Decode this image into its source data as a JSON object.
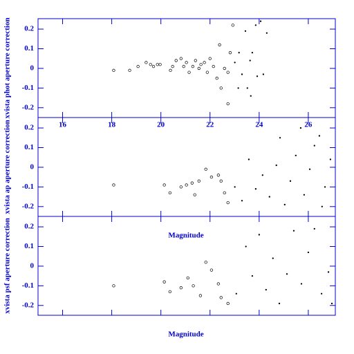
{
  "chart_data": [
    {
      "type": "scatter",
      "y_label": "xvista phot aperture correction",
      "color": "#000000",
      "axis_color": "#0000cc",
      "xlim": [
        15.0,
        27.1
      ],
      "ylim": [
        -0.25,
        0.253
      ],
      "xticks": [
        16,
        18,
        20,
        22,
        24,
        26
      ],
      "yticks": [
        -0.2,
        -0.1,
        0,
        0.1,
        0.2
      ],
      "x_tick_labels": true,
      "x": [
        18.08,
        18.73,
        19.07,
        19.4,
        19.58,
        19.7,
        19.86,
        19.97,
        20.39,
        20.48,
        20.62,
        20.82,
        20.93,
        21.04,
        21.15,
        21.3,
        21.41,
        21.55,
        21.63,
        21.77,
        21.89,
        22.0,
        22.14,
        22.28,
        22.39,
        22.45,
        22.59,
        22.73,
        22.82,
        22.93,
        23.01,
        23.18,
        23.3,
        23.44,
        23.52,
        23.63,
        23.72,
        23.86,
        23.92,
        24.06,
        24.17,
        24.31,
        22.73,
        23.15,
        23.66
      ],
      "values": [
        -0.01,
        -0.01,
        0.01,
        0.03,
        0.02,
        0.01,
        0.02,
        0.02,
        -0.01,
        0.01,
        0.04,
        0.05,
        0.01,
        0.03,
        -0.02,
        0.01,
        0.04,
        0,
        0.02,
        0.03,
        -0.02,
        0.05,
        0.01,
        -0.05,
        0.12,
        -0.1,
        0,
        -0.02,
        0.08,
        0.22,
        0.03,
        0.08,
        -0.03,
        0.19,
        -0.1,
        0.04,
        0.08,
        0.22,
        -0.04,
        0.24,
        -0.03,
        0.18,
        -0.18,
        -0.1,
        -0.14
      ]
    },
    {
      "type": "scatter",
      "y_label": "xvista ap aperture correction",
      "x_label": "Magnitude",
      "color": "#000000",
      "axis_color": "#0000cc",
      "xlim": [
        15.0,
        27.1
      ],
      "ylim": [
        -0.25,
        0.253
      ],
      "xticks": [
        16,
        18,
        20,
        22,
        24,
        26
      ],
      "yticks": [
        -0.2,
        -0.1,
        0,
        0.1,
        0.2
      ],
      "x_tick_labels": false,
      "x": [
        18.08,
        20.14,
        20.37,
        20.82,
        21.04,
        21.27,
        21.38,
        21.55,
        21.83,
        22.06,
        22.34,
        22.45,
        22.59,
        22.73,
        23.01,
        23.3,
        23.58,
        23.86,
        24.14,
        24.42,
        24.7,
        24.85,
        25.04,
        25.27,
        25.49,
        25.69,
        25.83,
        26.06,
        26.25,
        26.45,
        26.68,
        26.9,
        26.56
      ],
      "values": [
        -0.09,
        -0.09,
        -0.13,
        -0.1,
        -0.09,
        -0.08,
        -0.14,
        -0.07,
        -0.01,
        -0.05,
        -0.04,
        -0.07,
        -0.13,
        -0.18,
        -0.1,
        -0.17,
        0.04,
        -0.11,
        -0.04,
        -0.15,
        0.01,
        0.15,
        -0.19,
        -0.07,
        0.06,
        0.2,
        -0.14,
        -0.01,
        0.11,
        0.16,
        -0.1,
        0.04,
        -0.2
      ]
    },
    {
      "type": "scatter",
      "y_label": "xvista psf aperture correction",
      "x_label": "Magnitude",
      "color": "#000000",
      "axis_color": "#0000cc",
      "xlim": [
        15.0,
        27.1
      ],
      "ylim": [
        -0.25,
        0.253
      ],
      "xticks": [
        16,
        18,
        20,
        22,
        24,
        26
      ],
      "yticks": [
        -0.2,
        -0.1,
        0,
        0.1,
        0.2
      ],
      "x_tick_labels": false,
      "x": [
        18.08,
        20.14,
        20.37,
        20.82,
        21.1,
        21.32,
        21.61,
        21.83,
        22.06,
        22.34,
        22.45,
        22.73,
        23.07,
        23.46,
        23.72,
        24.0,
        24.28,
        24.56,
        24.82,
        25.13,
        25.41,
        25.72,
        26.0,
        26.25,
        26.54,
        26.82,
        26.96
      ],
      "values": [
        -0.1,
        -0.08,
        -0.13,
        -0.11,
        -0.06,
        -0.1,
        -0.15,
        0.02,
        -0.02,
        -0.09,
        -0.16,
        -0.19,
        -0.14,
        0.1,
        -0.05,
        0.16,
        -0.12,
        0.04,
        -0.19,
        -0.04,
        0.18,
        -0.09,
        0.07,
        0.19,
        -0.14,
        -0.03,
        -0.19
      ]
    }
  ]
}
